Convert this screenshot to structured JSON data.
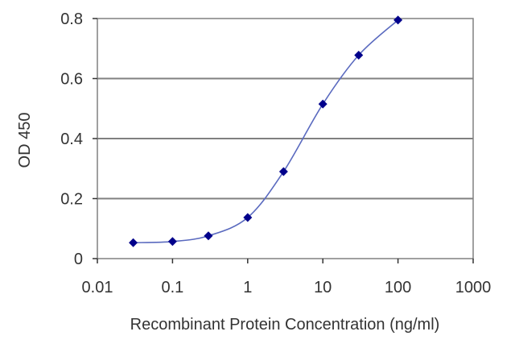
{
  "chart_data": {
    "type": "scatter",
    "title": "",
    "xlabel": "Recombinant Protein Concentration (ng/ml)",
    "ylabel": "OD 450",
    "x_scale": "log",
    "xlim": [
      0.01,
      1000
    ],
    "ylim": [
      0,
      0.8
    ],
    "x_ticks": [
      "0.01",
      "0.1",
      "1",
      "10",
      "100",
      "1000"
    ],
    "y_ticks": [
      "0",
      "0.2",
      "0.4",
      "0.6",
      "0.8"
    ],
    "grid": "horizontal",
    "legend": "none",
    "series": [
      {
        "x": [
          0.03,
          0.1,
          0.3,
          1,
          3,
          10,
          30,
          100
        ],
        "y": [
          0.053,
          0.057,
          0.076,
          0.137,
          0.29,
          0.515,
          0.678,
          0.795
        ],
        "fit_curve": true
      }
    ],
    "colors": {
      "marker": "#00008b",
      "curve": "#5a6abf",
      "grid": "#808080",
      "frame": "#808080"
    }
  }
}
